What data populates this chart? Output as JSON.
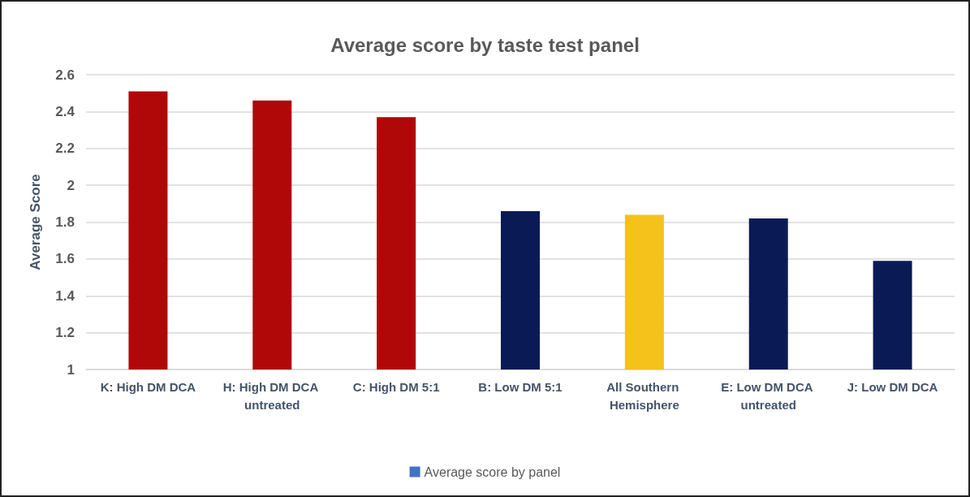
{
  "chart_data": {
    "type": "bar",
    "title": "Average score by taste test panel",
    "ylabel": "Average Score",
    "categories": [
      "K: High DM DCA",
      "H: High DM DCA untreated",
      "C: High DM 5:1",
      "B: Low DM 5:1",
      "All Southern Hemisphere",
      "E: Low DM DCA untreated",
      "J: Low DM DCA"
    ],
    "series": [
      {
        "name": "Average score by panel",
        "color": "#4472c4",
        "colors": [
          "#b00808",
          "#b00808",
          "#b00808",
          "#0a1a55",
          "#f4c21a",
          "#0a1a55",
          "#0a1a55"
        ],
        "values": [
          2.51,
          2.46,
          2.37,
          1.86,
          1.84,
          1.82,
          1.59
        ]
      }
    ],
    "ylim": [
      1,
      2.6
    ],
    "yticks": [
      1,
      1.2,
      1.4,
      1.6,
      1.8,
      2,
      2.2,
      2.4,
      2.6
    ],
    "grid": "y",
    "legend": "bottom"
  }
}
